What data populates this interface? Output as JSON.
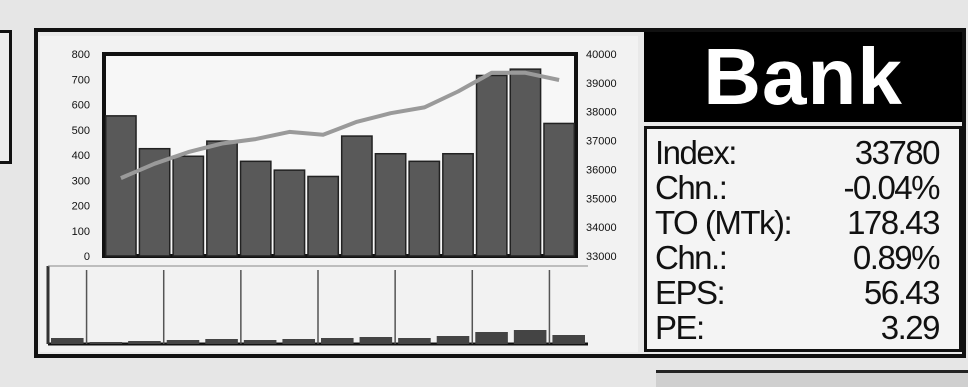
{
  "title": "Bank",
  "stats": [
    {
      "label": "Index:",
      "value": "33780"
    },
    {
      "label": "Chn.:",
      "value": "-0.04%"
    },
    {
      "label": "TO (MTk):",
      "value": "178.43"
    },
    {
      "label": "Chn.:",
      "value": "0.89%"
    },
    {
      "label": "EPS:",
      "value": "56.43"
    },
    {
      "label": "PE:",
      "value": "3.29"
    }
  ],
  "colors": {
    "bar": "#595959",
    "line": "#9a9a9a",
    "title_bg": "#000000",
    "title_fg": "#ffffff"
  },
  "chart_data": {
    "type": "bar",
    "left_axis": {
      "ylim": [
        0,
        800
      ],
      "ticks": [
        "800",
        "700",
        "600",
        "500",
        "400",
        "300",
        "200",
        "100",
        "0"
      ]
    },
    "right_axis": {
      "ylim": [
        33000,
        40000
      ],
      "ticks": [
        "40000",
        "39000",
        "38000",
        "37000",
        "36000",
        "35000",
        "34000",
        "33000"
      ]
    },
    "series": [
      {
        "type": "bar",
        "axis": "left",
        "values": [
          555,
          425,
          395,
          455,
          375,
          340,
          315,
          475,
          405,
          375,
          405,
          715,
          740,
          525
        ]
      },
      {
        "type": "line",
        "axis": "right",
        "values": [
          35700,
          36200,
          36600,
          36900,
          37050,
          37300,
          37200,
          37650,
          37950,
          38150,
          38700,
          39350,
          39350,
          39100
        ]
      }
    ],
    "volume_panel": {
      "values": [
        6,
        2,
        3,
        4,
        5,
        4,
        5,
        6,
        7,
        6,
        8,
        12,
        14,
        9
      ]
    },
    "grid": false,
    "legend": "none"
  }
}
